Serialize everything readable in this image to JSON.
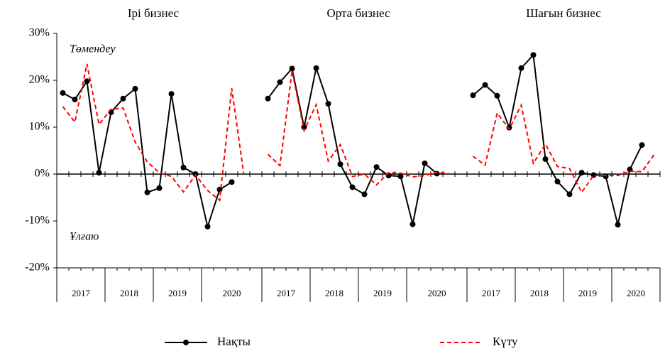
{
  "chart_data": {
    "type": "line",
    "panels": [
      "Ірі бизнес",
      "Орта бизнес",
      "Шағын бизнес"
    ],
    "years": [
      "2017",
      "2018",
      "2019",
      "2020"
    ],
    "annotations": [
      "Төмендеу",
      "Ұлғаю"
    ],
    "ylim": [
      -20,
      30
    ],
    "yticks": [
      {
        "value": -20,
        "label": "-20%"
      },
      {
        "value": -10,
        "label": "-10%"
      },
      {
        "value": 0,
        "label": "0%"
      },
      {
        "value": 10,
        "label": "10%"
      },
      {
        "value": 20,
        "label": "20%"
      },
      {
        "value": 30,
        "label": "30%"
      }
    ],
    "series": [
      {
        "name": "Нақты",
        "color": "#000000",
        "marker": true,
        "dash": false,
        "values": [
          [
            17.3,
            15.9,
            19.8,
            0.3,
            13.2,
            16.1,
            18.2,
            -3.9,
            -3.0,
            17.1,
            1.4,
            0,
            -11.2,
            -3.3,
            -1.7,
            null
          ],
          [
            16.1,
            19.6,
            22.5,
            10.0,
            22.6,
            15.0,
            2.1,
            -2.8,
            -4.3,
            1.5,
            -0.3,
            -0.5,
            -10.7,
            2.3,
            0.1,
            null
          ],
          [
            16.8,
            19.0,
            16.7,
            9.9,
            22.6,
            25.4,
            3.2,
            -1.6,
            -4.3,
            0.3,
            -0.2,
            -0.5,
            -10.8,
            1.0,
            6.2,
            null
          ]
        ]
      },
      {
        "name": "Күту",
        "color": "#ff0000",
        "marker": false,
        "dash": true,
        "values": [
          [
            14.4,
            11.1,
            23.5,
            10.6,
            13.8,
            14.1,
            6.8,
            2.6,
            0.3,
            -0.5,
            -3.8,
            -0.2,
            -3.5,
            -5.6,
            18.3,
            0
          ],
          [
            4.2,
            1.8,
            22.0,
            9.3,
            14.8,
            2.8,
            6.3,
            -0.5,
            0,
            -2.3,
            0.3,
            0.2,
            -0.6,
            -0.3,
            0.4,
            0.1
          ],
          [
            3.8,
            1.9,
            13.0,
            9.6,
            14.7,
            2.3,
            6.4,
            1.6,
            1.2,
            -3.9,
            -0.3,
            -0.3,
            -0.3,
            0.6,
            0.5,
            4.1
          ]
        ]
      }
    ]
  }
}
